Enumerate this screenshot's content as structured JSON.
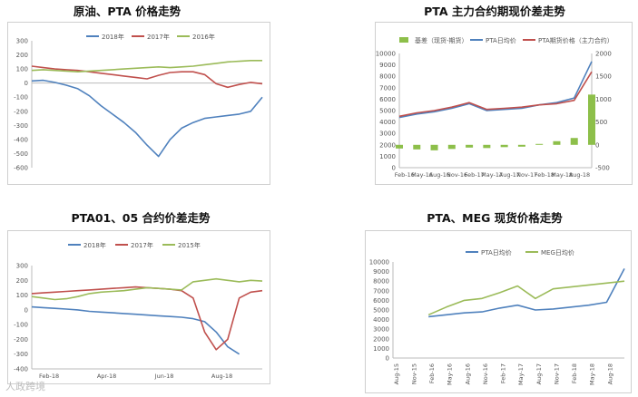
{
  "titles": {
    "c1": "原油、PTA 价格走势",
    "c2": "PTA 主力合约期现价差走势",
    "c3": "PTA01、05 合约价差走势",
    "c4": "PTA、MEG 现货价格走势"
  },
  "watermark": "人政跨境",
  "colors": {
    "blue": "#4f81bd",
    "red": "#c0504d",
    "green": "#9bbb59",
    "basis": "#8dbf4a",
    "border": "#cfcfcf"
  },
  "chart_data": [
    {
      "id": "c1",
      "type": "line",
      "title": "原油、PTA 价格走势",
      "ylim": [
        -600,
        300
      ],
      "yticks": [
        300,
        200,
        100,
        0,
        -100,
        -200,
        -300,
        -400,
        -500,
        -600
      ],
      "grid": false,
      "legend": "top",
      "x": [
        0,
        5,
        10,
        15,
        20,
        25,
        30,
        35,
        40,
        45,
        50,
        55,
        60,
        65,
        70,
        75,
        80,
        85,
        90,
        95,
        100
      ],
      "series": [
        {
          "name": "2018年",
          "color": "#4f81bd",
          "values": [
            15,
            20,
            5,
            -15,
            -40,
            -90,
            -160,
            -220,
            -280,
            -350,
            -440,
            -520,
            -400,
            -320,
            -280,
            -250,
            -240,
            -230,
            -220,
            -200,
            -100
          ]
        },
        {
          "name": "2017年",
          "color": "#c0504d",
          "values": [
            120,
            110,
            100,
            95,
            90,
            80,
            70,
            60,
            50,
            40,
            30,
            55,
            75,
            80,
            80,
            60,
            -5,
            -30,
            -10,
            5,
            -5
          ]
        },
        {
          "name": "2016年",
          "color": "#9bbb59",
          "values": [
            90,
            95,
            90,
            85,
            80,
            85,
            90,
            95,
            100,
            105,
            110,
            115,
            110,
            115,
            120,
            130,
            140,
            150,
            155,
            160,
            160
          ]
        }
      ]
    },
    {
      "id": "c2",
      "type": "line",
      "title": "PTA 主力合约期现价差走势",
      "ylim": [
        0,
        10000
      ],
      "yticks": [
        10000,
        9000,
        8000,
        7000,
        6000,
        5000,
        4000,
        3000,
        2000,
        1000,
        0
      ],
      "y2lim": [
        -500,
        2000
      ],
      "y2ticks": [
        2000,
        1500,
        1000,
        500,
        0,
        -500
      ],
      "categories": [
        "Feb-16",
        "May-16",
        "Aug-16",
        "Nov-16",
        "Feb-17",
        "May-17",
        "Aug-17",
        "Nov-17",
        "Feb-18",
        "May-18",
        "Aug-18"
      ],
      "legend": "top",
      "x": [
        0,
        1,
        2,
        3,
        4,
        5,
        6,
        7,
        8,
        9,
        10,
        11
      ],
      "series": [
        {
          "name": "基差（现货-期货）",
          "color": "#8dbf4a",
          "kind": "bar",
          "axis": "right",
          "values": [
            -80,
            -100,
            -120,
            -90,
            -60,
            -70,
            -50,
            -40,
            20,
            80,
            150,
            1100
          ]
        },
        {
          "name": "PTA日均价",
          "color": "#4f81bd",
          "axis": "left",
          "values": [
            4400,
            4700,
            4900,
            5200,
            5600,
            5000,
            5100,
            5200,
            5500,
            5700,
            6100,
            9300
          ]
        },
        {
          "name": "PTA期货价格（主力合约）",
          "color": "#c0504d",
          "axis": "left",
          "values": [
            4500,
            4800,
            5000,
            5300,
            5700,
            5100,
            5200,
            5300,
            5500,
            5600,
            5900,
            8400
          ]
        }
      ]
    },
    {
      "id": "c3",
      "type": "line",
      "title": "PTA01、05 合约价差走势",
      "ylim": [
        -400,
        300
      ],
      "yticks": [
        300,
        200,
        100,
        0,
        -100,
        -200,
        -300,
        -400
      ],
      "categories": [
        "Feb-18",
        "Apr-18",
        "Jun-18",
        "Aug-18"
      ],
      "legend": "top",
      "x": [
        0,
        5,
        10,
        15,
        20,
        25,
        30,
        35,
        40,
        45,
        50,
        55,
        60,
        65,
        70,
        75,
        80,
        85,
        90,
        95,
        100
      ],
      "series": [
        {
          "name": "2018年",
          "color": "#4f81bd",
          "values": [
            20,
            15,
            10,
            5,
            0,
            -10,
            -15,
            -20,
            -25,
            -30,
            -35,
            -40,
            -45,
            -50,
            -60,
            -80,
            -150,
            -250,
            -300,
            null,
            null
          ]
        },
        {
          "name": "2017年",
          "color": "#c0504d",
          "values": [
            110,
            115,
            120,
            125,
            130,
            135,
            140,
            145,
            150,
            155,
            150,
            145,
            140,
            130,
            80,
            -150,
            -270,
            -200,
            80,
            120,
            130
          ]
        },
        {
          "name": "2015年",
          "color": "#9bbb59",
          "values": [
            90,
            80,
            70,
            75,
            90,
            110,
            120,
            125,
            130,
            140,
            150,
            145,
            140,
            135,
            190,
            200,
            210,
            200,
            190,
            200,
            195
          ]
        }
      ]
    },
    {
      "id": "c4",
      "type": "line",
      "title": "PTA、MEG 现货价格走势",
      "ylim": [
        0,
        10000
      ],
      "yticks": [
        10000,
        9000,
        8000,
        7000,
        6000,
        5000,
        4000,
        3000,
        2000,
        1000,
        0
      ],
      "categories": [
        "Aug-15",
        "Nov-15",
        "Feb-16",
        "May-16",
        "Aug-16",
        "Nov-16",
        "Feb-17",
        "May-17",
        "Aug-17",
        "Nov-17",
        "Feb-18",
        "May-18",
        "Aug-18"
      ],
      "legend": "top",
      "x": [
        2,
        3,
        4,
        5,
        6,
        7,
        8,
        9,
        10,
        11,
        12,
        13
      ],
      "series": [
        {
          "name": "PTA日均价",
          "color": "#4f81bd",
          "values": [
            4300,
            4500,
            4700,
            4800,
            5200,
            5500,
            5000,
            5100,
            5300,
            5500,
            5800,
            9300
          ]
        },
        {
          "name": "MEG日均价",
          "color": "#9bbb59",
          "values": [
            4500,
            5300,
            6000,
            6200,
            6800,
            7500,
            6200,
            7200,
            7400,
            7600,
            7800,
            8000
          ]
        }
      ]
    }
  ]
}
